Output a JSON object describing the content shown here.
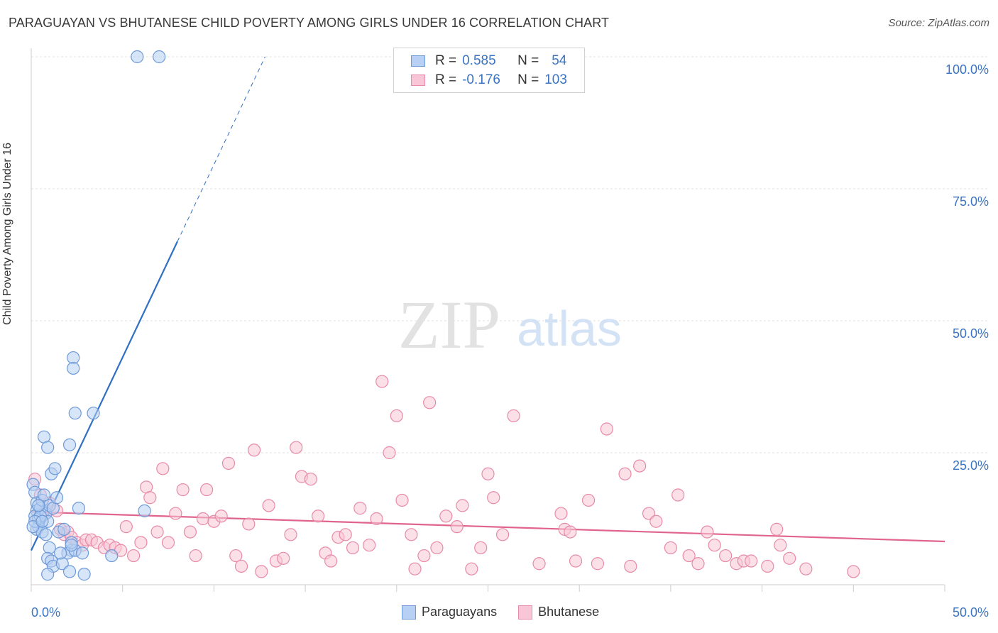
{
  "title": "PARAGUAYAN VS BHUTANESE CHILD POVERTY AMONG GIRLS UNDER 16 CORRELATION CHART",
  "source": "Source: ZipAtlas.com",
  "watermark": {
    "zip": "ZIP",
    "atlas": "atlas"
  },
  "legend": {
    "rows": [
      {
        "r_label": "R =",
        "r_value": "0.585",
        "n_label": "N =",
        "n_value": "54",
        "color": "#b7d0f3",
        "border": "#6e9ad8"
      },
      {
        "r_label": "R =",
        "r_value": "-0.176",
        "n_label": "N =",
        "n_value": "103",
        "color": "#f8c6d6",
        "border": "#e88aa8"
      }
    ]
  },
  "series_labels": {
    "a": "Paraguayans",
    "b": "Bhutanese"
  },
  "chart_data": {
    "type": "scatter",
    "title": "PARAGUAYAN VS BHUTANESE CHILD POVERTY AMONG GIRLS UNDER 16 CORRELATION CHART",
    "xlabel": "",
    "ylabel": "Child Poverty Among Girls Under 16",
    "xlim": [
      0,
      50
    ],
    "ylim": [
      0,
      100
    ],
    "x_tick_labels": [
      "0.0%",
      "50.0%"
    ],
    "y_tick_labels": [
      "25.0%",
      "50.0%",
      "75.0%",
      "100.0%"
    ],
    "y_ticks": [
      25,
      50,
      75,
      100
    ],
    "grid": true,
    "legend_position": "top-center",
    "series": [
      {
        "name": "Paraguayans",
        "color": "#6e9ad8",
        "fill": "#b7d0f3",
        "trend": {
          "x0": 0.0,
          "y0": 6.5,
          "x1": 8.0,
          "y1": 65.0,
          "dash_x1": 12.8,
          "dash_y1": 100.0,
          "color": "#2f6fc4"
        },
        "points": [
          [
            5.8,
            100.0
          ],
          [
            7.0,
            100.0
          ],
          [
            0.1,
            19.0
          ],
          [
            0.2,
            17.5
          ],
          [
            0.3,
            15.5
          ],
          [
            0.3,
            14.0
          ],
          [
            0.2,
            13.0
          ],
          [
            0.4,
            12.5
          ],
          [
            0.5,
            14.5
          ],
          [
            0.6,
            16.0
          ],
          [
            0.7,
            17.0
          ],
          [
            0.8,
            13.5
          ],
          [
            0.9,
            12.0
          ],
          [
            1.0,
            15.0
          ],
          [
            0.4,
            11.0
          ],
          [
            0.3,
            10.5
          ],
          [
            0.6,
            10.0
          ],
          [
            0.8,
            9.5
          ],
          [
            0.7,
            28.0
          ],
          [
            0.9,
            26.0
          ],
          [
            1.1,
            21.0
          ],
          [
            1.3,
            22.0
          ],
          [
            2.1,
            26.5
          ],
          [
            2.3,
            43.0
          ],
          [
            2.3,
            41.0
          ],
          [
            2.4,
            32.5
          ],
          [
            3.4,
            32.5
          ],
          [
            2.6,
            14.5
          ],
          [
            6.2,
            14.0
          ],
          [
            1.0,
            7.0
          ],
          [
            0.9,
            5.0
          ],
          [
            1.1,
            4.5
          ],
          [
            1.2,
            3.5
          ],
          [
            1.7,
            4.0
          ],
          [
            2.2,
            6.5
          ],
          [
            2.0,
            6.0
          ],
          [
            2.4,
            6.5
          ],
          [
            2.8,
            6.0
          ],
          [
            4.4,
            5.5
          ],
          [
            0.9,
            2.0
          ],
          [
            2.1,
            2.5
          ],
          [
            2.9,
            2.0
          ],
          [
            1.5,
            10.0
          ],
          [
            1.8,
            10.5
          ],
          [
            2.2,
            8.0
          ],
          [
            0.5,
            13.0
          ],
          [
            1.2,
            14.5
          ],
          [
            0.2,
            12.0
          ],
          [
            0.1,
            11.0
          ],
          [
            0.4,
            15.0
          ],
          [
            0.6,
            12.0
          ],
          [
            1.4,
            16.5
          ],
          [
            2.2,
            7.5
          ],
          [
            1.6,
            6.0
          ]
        ]
      },
      {
        "name": "Bhutanese",
        "color": "#e88aa8",
        "fill": "#f8c6d6",
        "trend": {
          "x0": 0.0,
          "y0": 13.8,
          "x1": 50.0,
          "y1": 8.2,
          "color": "#e0648c"
        },
        "points": [
          [
            0.2,
            20.0
          ],
          [
            0.5,
            17.0
          ],
          [
            0.8,
            14.0
          ],
          [
            1.0,
            15.5
          ],
          [
            1.4,
            14.0
          ],
          [
            1.6,
            10.5
          ],
          [
            1.8,
            9.5
          ],
          [
            2.0,
            10.0
          ],
          [
            2.2,
            9.0
          ],
          [
            2.5,
            8.0
          ],
          [
            2.8,
            7.5
          ],
          [
            3.0,
            8.5
          ],
          [
            3.3,
            8.5
          ],
          [
            3.6,
            8.0
          ],
          [
            4.0,
            7.0
          ],
          [
            4.3,
            7.5
          ],
          [
            4.6,
            7.0
          ],
          [
            4.9,
            6.5
          ],
          [
            5.2,
            11.0
          ],
          [
            5.6,
            5.5
          ],
          [
            6.0,
            8.0
          ],
          [
            6.3,
            18.5
          ],
          [
            6.5,
            16.5
          ],
          [
            6.9,
            10.0
          ],
          [
            7.2,
            22.0
          ],
          [
            7.5,
            8.0
          ],
          [
            7.9,
            13.5
          ],
          [
            8.3,
            18.0
          ],
          [
            8.7,
            10.0
          ],
          [
            9.0,
            5.5
          ],
          [
            9.4,
            12.5
          ],
          [
            9.6,
            18.0
          ],
          [
            10.0,
            12.0
          ],
          [
            10.4,
            13.0
          ],
          [
            10.8,
            23.0
          ],
          [
            11.2,
            5.5
          ],
          [
            11.5,
            3.5
          ],
          [
            11.9,
            11.5
          ],
          [
            12.2,
            25.5
          ],
          [
            12.6,
            2.5
          ],
          [
            13.0,
            15.0
          ],
          [
            13.4,
            4.5
          ],
          [
            13.8,
            5.0
          ],
          [
            14.2,
            9.5
          ],
          [
            14.5,
            26.0
          ],
          [
            14.8,
            20.5
          ],
          [
            15.3,
            20.0
          ],
          [
            15.7,
            13.0
          ],
          [
            16.1,
            6.0
          ],
          [
            16.4,
            4.5
          ],
          [
            16.8,
            9.0
          ],
          [
            17.2,
            9.5
          ],
          [
            17.6,
            7.0
          ],
          [
            18.0,
            14.5
          ],
          [
            18.5,
            7.5
          ],
          [
            18.9,
            12.5
          ],
          [
            19.2,
            38.5
          ],
          [
            19.6,
            25.0
          ],
          [
            20.0,
            32.0
          ],
          [
            20.3,
            16.0
          ],
          [
            20.8,
            9.5
          ],
          [
            21.0,
            3.0
          ],
          [
            21.5,
            5.5
          ],
          [
            21.8,
            34.5
          ],
          [
            22.2,
            7.0
          ],
          [
            22.7,
            13.0
          ],
          [
            23.3,
            11.0
          ],
          [
            23.6,
            15.0
          ],
          [
            24.1,
            3.0
          ],
          [
            24.6,
            7.0
          ],
          [
            25.0,
            21.0
          ],
          [
            25.3,
            16.5
          ],
          [
            25.8,
            9.5
          ],
          [
            26.4,
            32.0
          ],
          [
            27.8,
            4.0
          ],
          [
            29.0,
            13.5
          ],
          [
            29.2,
            10.5
          ],
          [
            29.5,
            10.0
          ],
          [
            29.8,
            4.5
          ],
          [
            30.5,
            16.0
          ],
          [
            31.0,
            4.0
          ],
          [
            31.5,
            29.5
          ],
          [
            32.5,
            21.0
          ],
          [
            32.8,
            3.5
          ],
          [
            33.3,
            22.5
          ],
          [
            33.8,
            13.5
          ],
          [
            34.2,
            12.0
          ],
          [
            35.0,
            7.0
          ],
          [
            35.4,
            17.0
          ],
          [
            36.0,
            5.5
          ],
          [
            36.5,
            4.0
          ],
          [
            37.0,
            10.0
          ],
          [
            37.4,
            7.5
          ],
          [
            38.0,
            5.5
          ],
          [
            38.6,
            4.0
          ],
          [
            39.0,
            4.5
          ],
          [
            39.4,
            4.5
          ],
          [
            40.3,
            3.5
          ],
          [
            40.8,
            10.5
          ],
          [
            41.5,
            5.0
          ],
          [
            41.0,
            7.5
          ],
          [
            42.4,
            3.0
          ],
          [
            45.0,
            2.5
          ]
        ]
      }
    ]
  }
}
